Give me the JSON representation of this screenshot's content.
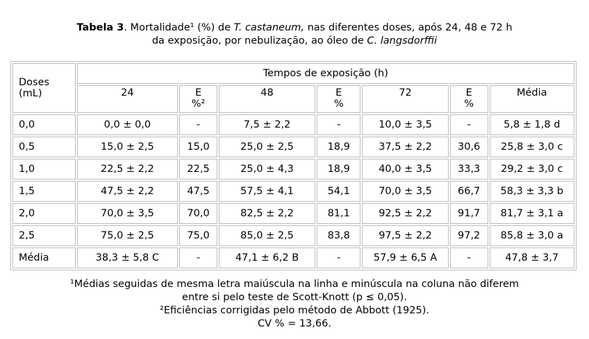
{
  "title": {
    "parts": [
      "Tabela 3",
      ". Mortalidade¹ (%) de ",
      "T. castaneum,",
      " nas diferentes doses, após 24, 48 e 72 h",
      "da exposição, por nebulização, ao óleo de ",
      "C. langsdorffii"
    ]
  },
  "table": {
    "header": {
      "doses": "Doses (mL)",
      "group": "Tempos de exposição (h)",
      "columns": [
        "24",
        "E %²",
        "48",
        "E %",
        "72",
        "E %",
        "Média"
      ]
    },
    "rows": [
      [
        "0,0",
        "0,0 ± 0,0",
        "-",
        "7,5 ± 2,2",
        "-",
        "10,0 ± 3,5",
        "-",
        "5,8 ± 1,8 d"
      ],
      [
        "0,5",
        "15,0 ± 2,5",
        "15,0",
        "25,0 ± 2,5",
        "18,9",
        "37,5 ± 2,2",
        "30,6",
        "25,8 ± 3,0 c"
      ],
      [
        "1,0",
        "22,5 ± 2,2",
        "22,5",
        "25,0 ± 4,3",
        "18,9",
        "40,0 ± 3,5",
        "33,3",
        "29,2 ± 3,0 c"
      ],
      [
        "1,5",
        "47,5 ± 2,2",
        "47,5",
        "57,5 ± 4,1",
        "54,1",
        "70,0 ± 3,5",
        "66,7",
        "58,3 ± 3,3 b"
      ],
      [
        "2,0",
        "70,0 ± 3,5",
        "70,0",
        "82,5 ± 2,2",
        "81,1",
        "92,5 ± 2,2",
        "91,7",
        "81,7 ± 3,1 a"
      ],
      [
        "2,5",
        "75,0 ± 2,5",
        "75,0",
        "85,0 ± 2,5",
        "83,8",
        "97,5 ± 2,2",
        "97,2",
        "85,8 ± 3,0 a"
      ],
      [
        "Média",
        "38,3 ± 5,8 C",
        "-",
        "47,1 ± 6,2 B",
        "-",
        "57,9 ± 6,5 A",
        "-",
        "47,8 ± 3,7"
      ]
    ]
  },
  "footnotes": [
    "¹Médias seguidas de mesma letra maiúscula na linha e minúscula na coluna não diferem",
    "entre si pelo teste de Scott-Knott (p ≤ 0,05).",
    "²Eficiências corrigidas pelo método de Abbott (1925).",
    "CV % = 13,66."
  ]
}
